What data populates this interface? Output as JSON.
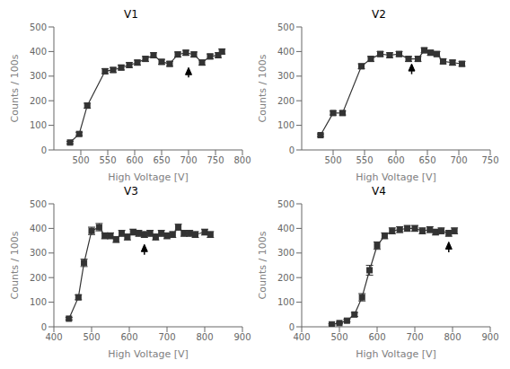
{
  "chart_data": [
    {
      "type": "line",
      "title": "V1",
      "xlabel": "High Voltage [V]",
      "ylabel": "Counts / 100s",
      "color": "#333333",
      "marker": "square",
      "grid": false,
      "xlim": [
        450,
        800
      ],
      "xticks": [
        500,
        550,
        600,
        650,
        700,
        750,
        800
      ],
      "ylim": [
        0,
        500
      ],
      "yticks": [
        0,
        100,
        200,
        300,
        400,
        500
      ],
      "x": [
        480,
        497,
        512,
        545,
        560,
        575,
        590,
        605,
        620,
        635,
        650,
        665,
        680,
        695,
        710,
        725,
        740,
        755,
        762
      ],
      "values": [
        30,
        65,
        180,
        320,
        325,
        335,
        345,
        355,
        370,
        385,
        358,
        350,
        388,
        395,
        388,
        355,
        380,
        385,
        400
      ],
      "error": [
        5,
        7,
        10,
        10,
        10,
        10,
        10,
        10,
        10,
        10,
        10,
        10,
        10,
        10,
        10,
        10,
        10,
        10,
        10
      ],
      "arrow": {
        "x": 700,
        "tip": 335,
        "base": 295,
        "color": "#000000"
      }
    },
    {
      "type": "line",
      "title": "V2",
      "xlabel": "High Voltage [V]",
      "ylabel": "Counts / 100s",
      "color": "#333333",
      "marker": "square",
      "grid": false,
      "xlim": [
        450,
        750
      ],
      "xticks": [
        500,
        550,
        600,
        650,
        700,
        750
      ],
      "ylim": [
        0,
        500
      ],
      "yticks": [
        0,
        100,
        200,
        300,
        400,
        500
      ],
      "x": [
        480,
        500,
        515,
        545,
        560,
        575,
        590,
        605,
        620,
        635,
        645,
        655,
        665,
        675,
        690,
        705
      ],
      "values": [
        60,
        150,
        150,
        340,
        370,
        390,
        385,
        390,
        370,
        370,
        405,
        395,
        390,
        360,
        355,
        350
      ],
      "error": [
        5,
        8,
        8,
        10,
        10,
        10,
        10,
        10,
        10,
        10,
        10,
        10,
        10,
        10,
        10,
        10
      ],
      "arrow": {
        "x": 625,
        "tip": 350,
        "base": 308,
        "color": "#000000"
      }
    },
    {
      "type": "line",
      "title": "V3",
      "xlabel": "High Voltage [V]",
      "ylabel": "Counts / 100s",
      "color": "#333333",
      "marker": "square",
      "grid": false,
      "xlim": [
        400,
        900
      ],
      "xticks": [
        400,
        500,
        600,
        700,
        800,
        900
      ],
      "ylim": [
        0,
        500
      ],
      "yticks": [
        0,
        100,
        200,
        300,
        400,
        500
      ],
      "x": [
        440,
        465,
        480,
        500,
        520,
        535,
        550,
        565,
        580,
        595,
        610,
        625,
        640,
        655,
        670,
        685,
        700,
        715,
        730,
        745,
        760,
        775,
        800,
        815
      ],
      "values": [
        33,
        120,
        260,
        390,
        405,
        370,
        370,
        355,
        380,
        365,
        385,
        380,
        375,
        380,
        365,
        380,
        370,
        375,
        405,
        380,
        380,
        375,
        385,
        375
      ],
      "error": [
        5,
        10,
        15,
        15,
        15,
        12,
        12,
        12,
        12,
        12,
        12,
        12,
        12,
        12,
        12,
        12,
        12,
        12,
        12,
        12,
        12,
        12,
        12,
        12
      ],
      "arrow": {
        "x": 640,
        "tip": 335,
        "base": 293,
        "color": "#000000"
      }
    },
    {
      "type": "line",
      "title": "V4",
      "xlabel": "High Voltage [V]",
      "ylabel": "Counts / 100s",
      "color": "#333333",
      "marker": "square",
      "grid": false,
      "xlim": [
        400,
        900
      ],
      "xticks": [
        400,
        500,
        600,
        700,
        800,
        900
      ],
      "ylim": [
        0,
        500
      ],
      "yticks": [
        0,
        100,
        200,
        300,
        400,
        500
      ],
      "x": [
        480,
        500,
        520,
        540,
        560,
        580,
        600,
        620,
        640,
        660,
        680,
        700,
        720,
        740,
        755,
        770,
        790,
        805
      ],
      "values": [
        10,
        15,
        25,
        50,
        120,
        230,
        330,
        370,
        390,
        395,
        400,
        400,
        390,
        395,
        385,
        390,
        380,
        390
      ],
      "error": [
        3,
        3,
        5,
        8,
        15,
        20,
        15,
        12,
        12,
        12,
        12,
        12,
        12,
        12,
        12,
        12,
        12,
        12
      ],
      "arrow": {
        "x": 790,
        "tip": 345,
        "base": 303,
        "color": "#000000"
      }
    }
  ]
}
